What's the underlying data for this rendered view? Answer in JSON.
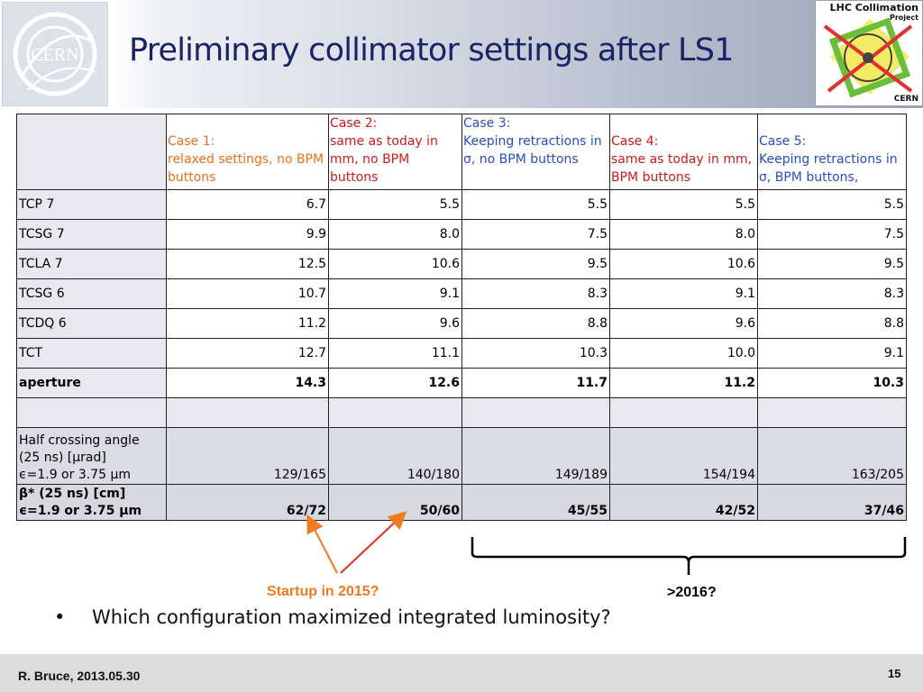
{
  "header": {
    "title": "Preliminary collimator settings after LS1",
    "cern_logo_text": "CERN",
    "project_logo": {
      "line1": "LHC Collimation",
      "line2": "Project",
      "line3": "CERN"
    }
  },
  "table": {
    "cases": [
      {
        "title": "Case 1:",
        "desc": "relaxed settings, no BPM buttons",
        "color": "#e8701c"
      },
      {
        "title": "Case 2:",
        "desc": "same as today in mm, no BPM buttons",
        "color": "#cc1a1a"
      },
      {
        "title": "Case 3:",
        "desc": "Keeping retractions in σ, no BPM buttons",
        "color": "#2a4cc4"
      },
      {
        "title": "Case 4:",
        "desc": "same as today in mm, BPM buttons",
        "color": "#cc1a1a"
      },
      {
        "title": "Case 5:",
        "desc": "Keeping retractions in σ, BPM buttons,",
        "color": "#2a4cc4"
      }
    ],
    "rows": [
      {
        "label": "TCP 7",
        "values": [
          "6.7",
          "5.5",
          "5.5",
          "5.5",
          "5.5"
        ]
      },
      {
        "label": "TCSG 7",
        "values": [
          "9.9",
          "8.0",
          "7.5",
          "8.0",
          "7.5"
        ]
      },
      {
        "label": "TCLA 7",
        "values": [
          "12.5",
          "10.6",
          "9.5",
          "10.6",
          "9.5"
        ]
      },
      {
        "label": "TCSG 6",
        "values": [
          "10.7",
          "9.1",
          "8.3",
          "9.1",
          "8.3"
        ]
      },
      {
        "label": "TCDQ 6",
        "values": [
          "11.2",
          "9.6",
          "8.8",
          "9.6",
          "8.8"
        ]
      },
      {
        "label": "TCT",
        "values": [
          "12.7",
          "11.1",
          "10.3",
          "10.0",
          "9.1"
        ]
      },
      {
        "label": "aperture",
        "values": [
          "14.3",
          "12.6",
          "11.7",
          "11.2",
          "10.3"
        ]
      }
    ],
    "half_crossing": {
      "label_line1": "Half crossing angle",
      "label_line2": "(25 ns) [μrad]",
      "label_line3": "ϵ=1.9 or 3.75 μm",
      "values": [
        "129/165",
        "140/180",
        "149/189",
        "154/194",
        "163/205"
      ]
    },
    "beta_star": {
      "label_line1": "β* (25 ns) [cm]",
      "label_line2": "ϵ=1.9 or 3.75 μm",
      "values": [
        "62/72",
        "50/60",
        "45/55",
        "42/52",
        "37/46"
      ]
    }
  },
  "annotations": {
    "startup": "Startup in 2015?",
    "later": ">2016?",
    "startup_color": "#f07a20"
  },
  "bullet": "Which configuration maximized integrated luminosity?",
  "footer": {
    "author": "R. Bruce, 2013.05.30",
    "page": "15"
  }
}
